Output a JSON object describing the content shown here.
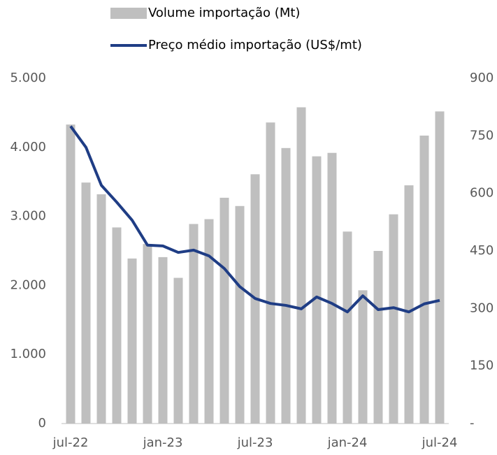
{
  "chart_data": {
    "type": "bar-line",
    "categories": [
      "jul-22",
      null,
      null,
      null,
      null,
      null,
      "jan-23",
      null,
      null,
      null,
      null,
      null,
      "jul-23",
      null,
      null,
      null,
      null,
      null,
      "jan-24",
      null,
      null,
      null,
      null,
      null,
      "jul-24"
    ],
    "series": [
      {
        "name": "Volume importação (Mt)",
        "type": "bar",
        "color": "#bfbfbf",
        "values": [
          4330,
          3490,
          3320,
          2840,
          2390,
          2600,
          2410,
          2110,
          2890,
          2960,
          3270,
          3150,
          3610,
          4360,
          3990,
          4580,
          3870,
          3920,
          2780,
          1930,
          2500,
          3030,
          3450,
          4170,
          4520
        ]
      },
      {
        "name": "Preço médio importação (US$/mt)",
        "type": "line",
        "axis": "y2",
        "color": "#1f3d85",
        "values": [
          775,
          720,
          621,
          577,
          530,
          465,
          463,
          446,
          452,
          437,
          404,
          357,
          326,
          313,
          308,
          299,
          330,
          313,
          291,
          333,
          297,
          302,
          291,
          312,
          321
        ]
      }
    ],
    "ylim": [
      0,
      5000
    ],
    "yticks": [
      0,
      {
        "value": 1000,
        "label": "1.000"
      },
      {
        "value": 2000,
        "label": "2.000"
      },
      {
        "value": 3000,
        "label": "3.000"
      },
      {
        "value": 4000,
        "label": "4.000"
      },
      {
        "value": 5000,
        "label": "5.000"
      }
    ],
    "y2lim": [
      0,
      900
    ],
    "y2ticks": [
      {
        "value": 0,
        "label": "-"
      },
      150,
      300,
      450,
      600,
      750,
      900
    ],
    "grid": false
  }
}
